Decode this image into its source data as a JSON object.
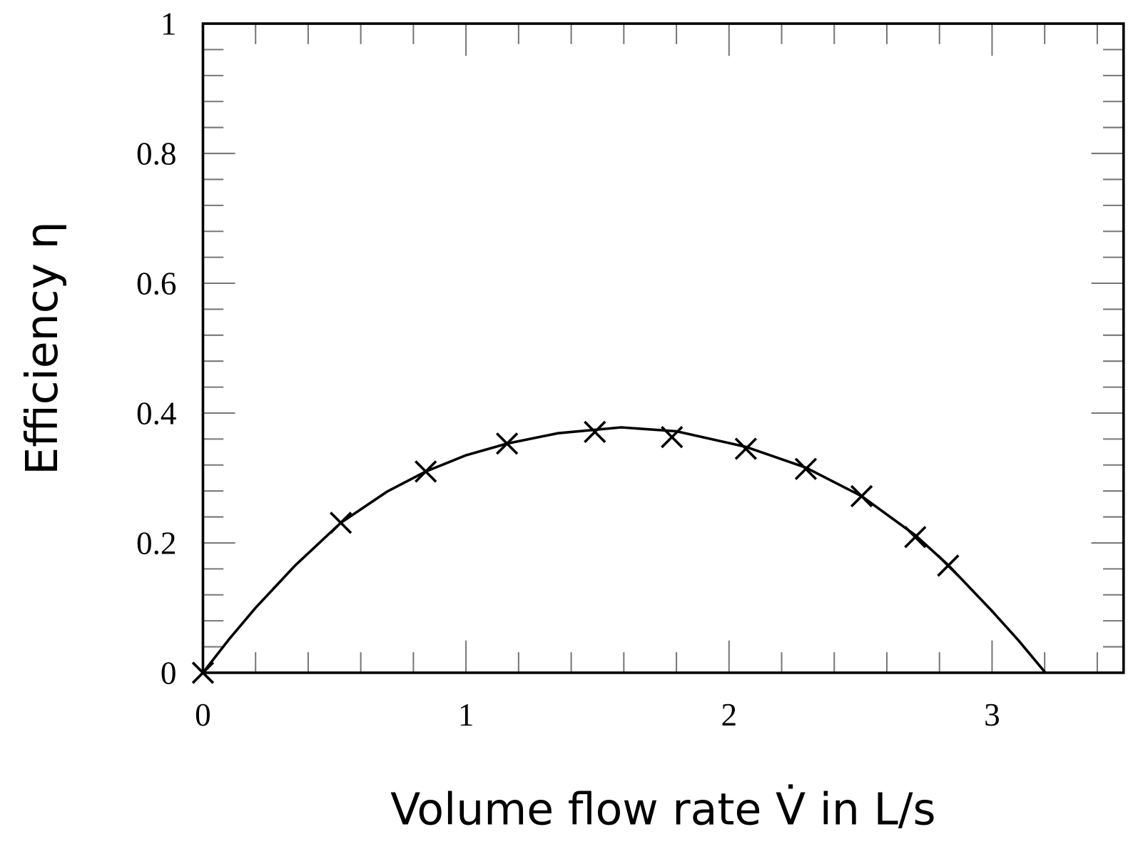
{
  "chart_data": {
    "type": "scatter",
    "xlabel": "Volume flow rate V̇ in L/s",
    "ylabel": "Efficiency η",
    "xlim": [
      0,
      3.5
    ],
    "ylim": [
      0,
      1
    ],
    "xticks": [
      0,
      1,
      2,
      3
    ],
    "yticks": [
      0,
      {
        "value": 0.2,
        "label": "0.2"
      },
      {
        "value": 0.4,
        "label": "0.4"
      },
      {
        "value": 0.6,
        "label": "0.6"
      },
      {
        "value": 0.8,
        "label": "0.8"
      },
      1
    ],
    "xminorticks": [
      0.2,
      0.4,
      0.6,
      0.8,
      1.2,
      1.4,
      1.6,
      1.8,
      2.2,
      2.4,
      2.6,
      2.8,
      3.2,
      3.4
    ],
    "yminorticks": [
      0.04,
      0.08,
      0.12,
      0.16,
      0.24,
      0.28,
      0.32,
      0.36,
      0.44,
      0.48,
      0.52,
      0.56,
      0.64,
      0.68,
      0.72,
      0.76,
      0.84,
      0.88,
      0.92,
      0.96
    ],
    "series": [
      {
        "mode": "markers",
        "marker": "x",
        "color": "#000000",
        "x": [
          0,
          0.524,
          0.847,
          1.156,
          1.49,
          1.783,
          2.064,
          2.292,
          2.504,
          2.708,
          2.833
        ],
        "values": [
          0,
          0.231,
          0.31,
          0.353,
          0.371,
          0.363,
          0.345,
          0.314,
          0.272,
          0.209,
          0.165
        ]
      },
      {
        "mode": "line",
        "color": "#000000",
        "x": [
          0,
          0.1,
          0.2,
          0.35,
          0.524,
          0.7,
          0.847,
          1.0,
          1.156,
          1.35,
          1.59,
          1.8,
          2.064,
          2.292,
          2.504,
          2.708,
          2.833,
          3.0,
          3.1,
          3.203
        ],
        "values": [
          0,
          0.052,
          0.1,
          0.165,
          0.231,
          0.279,
          0.31,
          0.335,
          0.353,
          0.369,
          0.378,
          0.372,
          0.348,
          0.316,
          0.272,
          0.212,
          0.166,
          0.095,
          0.05,
          0
        ]
      }
    ]
  }
}
